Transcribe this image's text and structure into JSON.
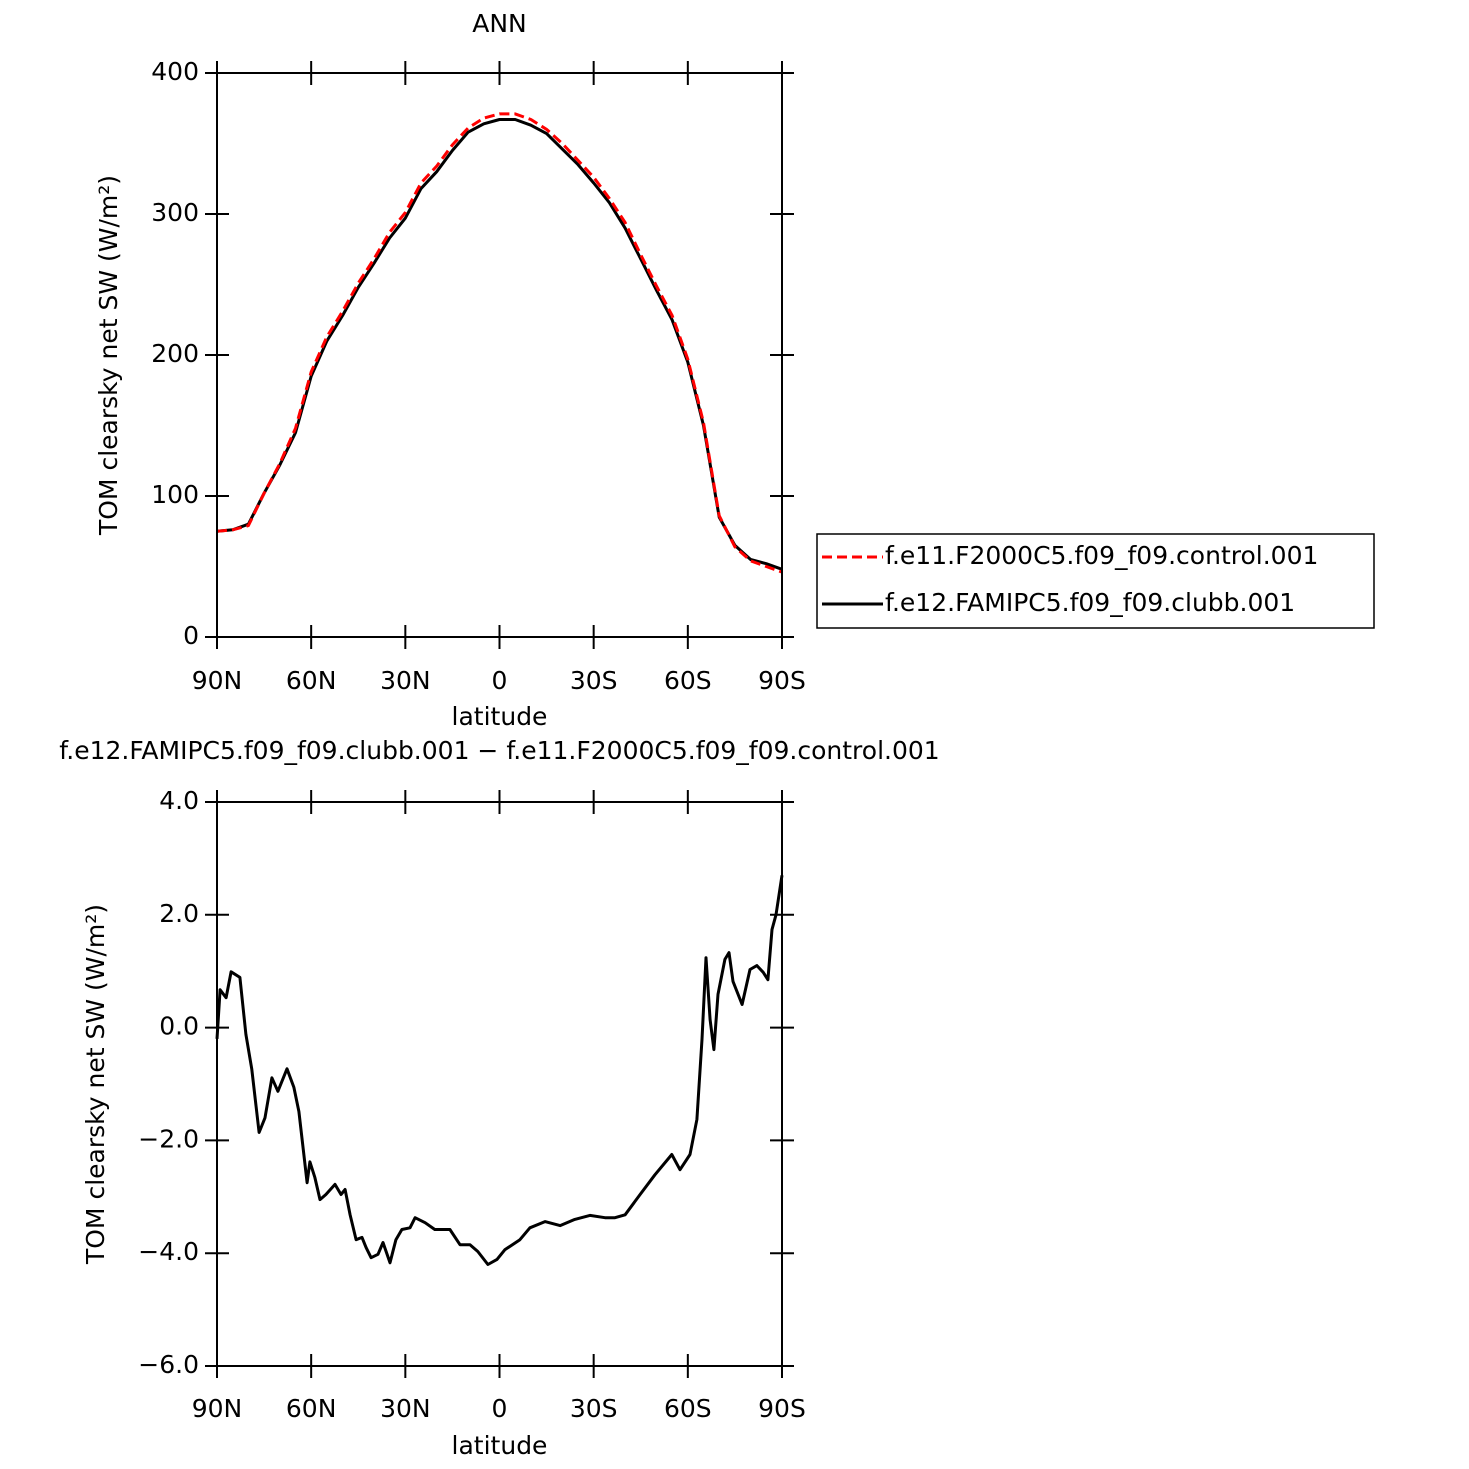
{
  "chart_data": [
    {
      "type": "line",
      "title": "ANN",
      "x_label": "latitude",
      "y_label": "TOM clearsky net SW (W/m²)",
      "x": [
        90,
        85,
        80,
        75,
        70,
        65,
        60,
        55,
        50,
        45,
        40,
        35,
        30,
        25,
        20,
        15,
        10,
        5,
        0,
        -5,
        -10,
        -15,
        -20,
        -25,
        -30,
        -35,
        -40,
        -45,
        -50,
        -55,
        -60,
        -65,
        -70,
        -75,
        -80,
        -85,
        -90
      ],
      "series": [
        {
          "name": "f.e11.F2000C5.f09_f09.control.001",
          "color": "#ff0000",
          "dash": "dashed",
          "values": [
            75,
            76,
            79,
            102,
            123,
            148,
            188,
            213,
            231,
            251,
            268,
            287,
            301,
            322,
            334,
            349,
            361,
            368,
            371,
            371,
            367,
            360,
            350,
            338,
            326,
            311,
            294,
            271,
            249,
            228,
            197,
            152,
            86,
            64,
            54,
            50,
            46
          ]
        },
        {
          "name": "f.e12.FAMIPC5.f09_f09.clubb.001",
          "color": "#000000",
          "dash": "solid",
          "values": [
            75,
            76,
            80,
            102,
            122,
            145,
            185,
            210,
            228,
            248,
            265,
            283,
            297,
            318,
            330,
            345,
            358,
            364,
            367,
            367,
            363,
            357,
            346,
            335,
            322,
            308,
            290,
            268,
            246,
            225,
            195,
            150,
            85,
            65,
            55,
            52,
            48
          ]
        }
      ],
      "xlim": [
        90,
        -90
      ],
      "xticks": [
        {
          "value": 90,
          "label": "90N"
        },
        {
          "value": 60,
          "label": "60N"
        },
        {
          "value": 30,
          "label": "30N"
        },
        0,
        {
          "value": -30,
          "label": "30S"
        },
        {
          "value": -60,
          "label": "60S"
        },
        {
          "value": -90,
          "label": "90S"
        }
      ],
      "ylim": [
        0,
        400
      ],
      "yticks": [
        0,
        100,
        200,
        300,
        400
      ],
      "legend": "right"
    },
    {
      "type": "line",
      "title": "f.e12.FAMIPC5.f09_f09.clubb.001 − f.e11.F2000C5.f09_f09.control.001",
      "x_label": "latitude",
      "y_label": "TOM clearsky net SW (W/m²)",
      "x": [
        90,
        89,
        87.1,
        85.5,
        82.7,
        80.8,
        78.9,
        76.6,
        74.7,
        72.5,
        70.6,
        67.7,
        65.5,
        63.9,
        61.3,
        60.4,
        58.8,
        57.2,
        55.3,
        52.4,
        50.5,
        49.2,
        47.6,
        45.7,
        43.8,
        42.5,
        40.9,
        38.7,
        37.1,
        34.9,
        33.0,
        31.1,
        28.5,
        26.9,
        23.7,
        20.6,
        15.8,
        12.6,
        9.4,
        6.9,
        3.7,
        0.8,
        -1.7,
        -6.5,
        -9.7,
        -14.5,
        -19.3,
        -24.0,
        -28.8,
        -33.6,
        -36.8,
        -40.0,
        -44.8,
        -49.5,
        -54.9,
        -57.5,
        -60.7,
        -62.9,
        -64.5,
        -65.8,
        -67.1,
        -68.3,
        -69.6,
        -71.8,
        -73.1,
        -74.4,
        -77.3,
        -79.8,
        -82.0,
        -84.0,
        -85.5,
        -86.8,
        -88.1,
        -90
      ],
      "values": [
        -0.2,
        0.67,
        0.53,
        0.99,
        0.89,
        -0.12,
        -0.74,
        -1.86,
        -1.6,
        -0.89,
        -1.13,
        -0.73,
        -1.06,
        -1.49,
        -2.75,
        -2.38,
        -2.66,
        -3.05,
        -2.96,
        -2.78,
        -2.96,
        -2.87,
        -3.32,
        -3.76,
        -3.72,
        -3.9,
        -4.08,
        -4.02,
        -3.81,
        -4.17,
        -3.76,
        -3.58,
        -3.55,
        -3.37,
        -3.46,
        -3.58,
        -3.58,
        -3.85,
        -3.85,
        -3.97,
        -4.2,
        -4.11,
        -3.94,
        -3.76,
        -3.55,
        -3.44,
        -3.51,
        -3.4,
        -3.33,
        -3.37,
        -3.37,
        -3.32,
        -2.96,
        -2.61,
        -2.25,
        -2.52,
        -2.25,
        -1.63,
        -0.21,
        1.24,
        0.14,
        -0.39,
        0.59,
        1.21,
        1.33,
        0.82,
        0.41,
        1.03,
        1.1,
        0.98,
        0.85,
        1.74,
        2.0,
        2.7
      ],
      "color": "#000000",
      "xlim": [
        90,
        -90
      ],
      "xticks": [
        {
          "value": 90,
          "label": "90N"
        },
        {
          "value": 60,
          "label": "60N"
        },
        {
          "value": 30,
          "label": "30N"
        },
        0,
        {
          "value": -30,
          "label": "30S"
        },
        {
          "value": -60,
          "label": "60S"
        },
        {
          "value": -90,
          "label": "90S"
        }
      ],
      "ylim": [
        -6,
        4
      ],
      "yticks": [
        {
          "value": -6,
          "label": "−6.0"
        },
        {
          "value": -4,
          "label": "−4.0"
        },
        {
          "value": -2,
          "label": "−2.0"
        },
        {
          "value": 0,
          "label": "0.0"
        },
        {
          "value": 2,
          "label": "2.0"
        },
        {
          "value": 4,
          "label": "4.0"
        }
      ]
    }
  ]
}
